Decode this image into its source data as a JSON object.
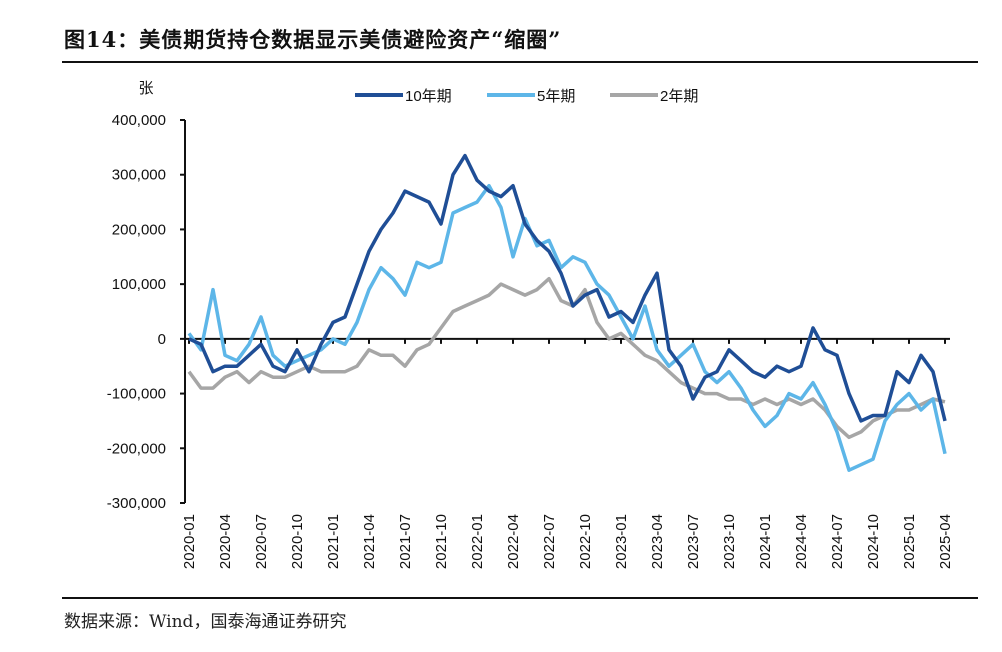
{
  "title": "图14：美债期货持仓数据显示美债避险资产“缩圈”",
  "source": "数据来源：Wind，国泰海通证券研究",
  "chart_data": {
    "type": "line",
    "title": "图14：美债期货持仓数据显示美债避险资产“缩圈”",
    "ylabel": "张",
    "xlabel": "",
    "ylim": [
      -300000,
      400000
    ],
    "yticks": [
      400000,
      300000,
      200000,
      100000,
      0,
      -100000,
      -200000,
      -300000
    ],
    "ytick_labels": [
      "400,000",
      "300,000",
      "200,000",
      "100,000",
      "0",
      "-100,000",
      "-200,000",
      "-300,000"
    ],
    "xtick_labels": [
      "2020-01",
      "2020-04",
      "2020-07",
      "2020-10",
      "2021-01",
      "2021-04",
      "2021-07",
      "2021-10",
      "2022-01",
      "2022-04",
      "2022-07",
      "2022-10",
      "2023-01",
      "2023-04",
      "2023-07",
      "2023-10",
      "2024-01",
      "2024-04",
      "2024-07",
      "2024-10",
      "2025-01",
      "2025-04"
    ],
    "x_start": "2020-01",
    "x_frequency": "monthly",
    "legend_position": "top-center",
    "grid": false,
    "series": [
      {
        "name": "10年期",
        "color": "#1f4e96",
        "values": [
          0,
          -10000,
          -60000,
          -50000,
          -50000,
          -30000,
          -10000,
          -50000,
          -60000,
          -20000,
          -60000,
          -10000,
          30000,
          40000,
          100000,
          160000,
          200000,
          230000,
          270000,
          260000,
          250000,
          210000,
          300000,
          335000,
          290000,
          270000,
          260000,
          280000,
          210000,
          180000,
          160000,
          120000,
          60000,
          80000,
          90000,
          40000,
          50000,
          30000,
          80000,
          120000,
          -20000,
          -50000,
          -110000,
          -70000,
          -60000,
          -20000,
          -40000,
          -60000,
          -70000,
          -50000,
          -60000,
          -50000,
          20000,
          -20000,
          -30000,
          -100000,
          -150000,
          -140000,
          -140000,
          -60000,
          -80000,
          -30000,
          -60000,
          -150000
        ]
      },
      {
        "name": "5年期",
        "color": "#5db6e8",
        "values": [
          10000,
          -20000,
          90000,
          -30000,
          -40000,
          -10000,
          40000,
          -30000,
          -50000,
          -40000,
          -30000,
          -20000,
          0,
          -10000,
          30000,
          90000,
          130000,
          110000,
          80000,
          140000,
          130000,
          140000,
          230000,
          240000,
          250000,
          280000,
          240000,
          150000,
          220000,
          170000,
          180000,
          130000,
          150000,
          140000,
          100000,
          80000,
          40000,
          0,
          60000,
          -20000,
          -50000,
          -30000,
          -10000,
          -60000,
          -80000,
          -60000,
          -90000,
          -130000,
          -160000,
          -140000,
          -100000,
          -110000,
          -80000,
          -120000,
          -170000,
          -240000,
          -230000,
          -220000,
          -150000,
          -120000,
          -100000,
          -130000,
          -110000,
          -210000
        ]
      },
      {
        "name": "2年期",
        "color": "#a6a6a6",
        "values": [
          -60000,
          -90000,
          -90000,
          -70000,
          -60000,
          -80000,
          -60000,
          -70000,
          -70000,
          -60000,
          -50000,
          -60000,
          -60000,
          -60000,
          -50000,
          -20000,
          -30000,
          -30000,
          -50000,
          -20000,
          -10000,
          20000,
          50000,
          60000,
          70000,
          80000,
          100000,
          90000,
          80000,
          90000,
          110000,
          70000,
          60000,
          90000,
          30000,
          0,
          10000,
          -10000,
          -30000,
          -40000,
          -60000,
          -80000,
          -90000,
          -100000,
          -100000,
          -110000,
          -110000,
          -120000,
          -110000,
          -120000,
          -110000,
          -120000,
          -110000,
          -130000,
          -160000,
          -180000,
          -170000,
          -150000,
          -140000,
          -130000,
          -130000,
          -120000,
          -110000,
          -115000
        ]
      }
    ]
  }
}
